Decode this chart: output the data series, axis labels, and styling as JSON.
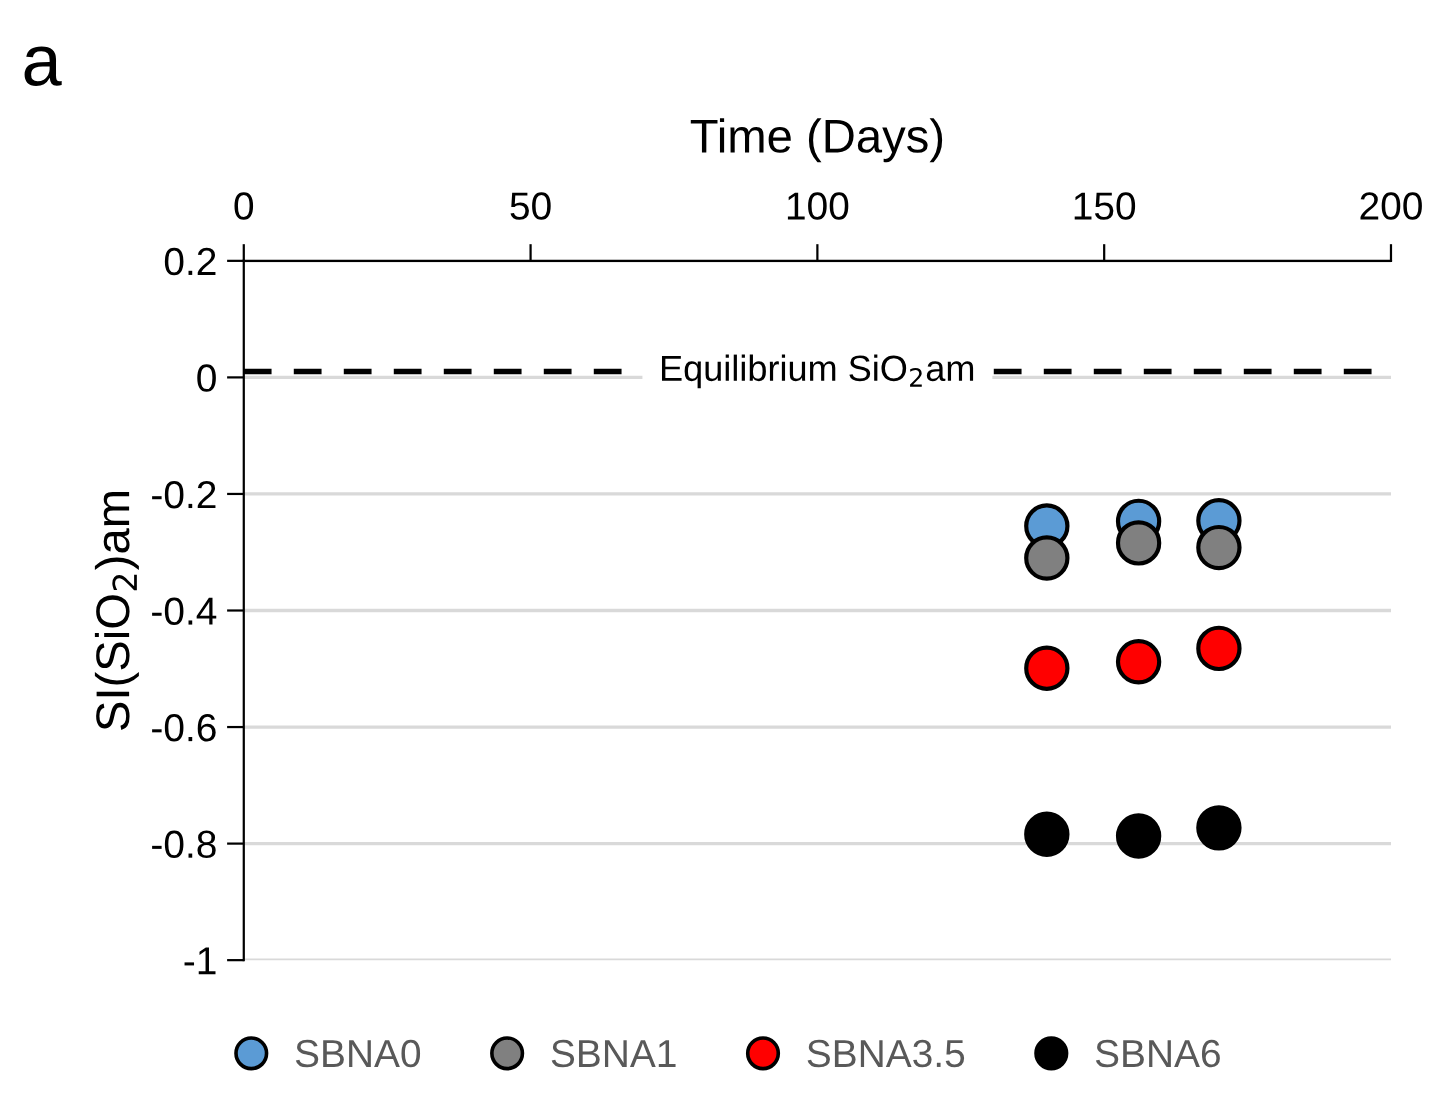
{
  "chart_data": {
    "type": "scatter",
    "xlabel": "Time (Days)",
    "ylabel": "SI(SiO$_{2}$)am",
    "annotations": [
      "a"
    ],
    "xlim": [
      0,
      200
    ],
    "xticks": [
      0,
      50,
      100,
      150,
      200
    ],
    "ylim": [
      -1,
      0.2
    ],
    "yticks": [
      0.2,
      0,
      -0.2,
      -0.4,
      -0.6,
      -0.8,
      -1
    ],
    "grid": "y",
    "legend": "bottom",
    "marker": "circle",
    "ref_lines": [
      {
        "axis": "y",
        "value": 0.01,
        "label": "Equilibrium SiO$_{2}$am",
        "color": "#000000",
        "line_style": "dashed"
      }
    ],
    "x": [
      140,
      156,
      170
    ],
    "series": [
      {
        "name": "SBNA0",
        "color": "#5b9bd5",
        "values": [
          -0.255,
          -0.247,
          -0.246
        ]
      },
      {
        "name": "SBNA1",
        "color": "#808080",
        "values": [
          -0.31,
          -0.284,
          -0.292
        ]
      },
      {
        "name": "SBNA3.5",
        "color": "#ff0000",
        "values": [
          -0.499,
          -0.488,
          -0.465
        ]
      },
      {
        "name": "SBNA6",
        "color": "#000000",
        "values": [
          -0.784,
          -0.787,
          -0.773
        ]
      }
    ]
  }
}
